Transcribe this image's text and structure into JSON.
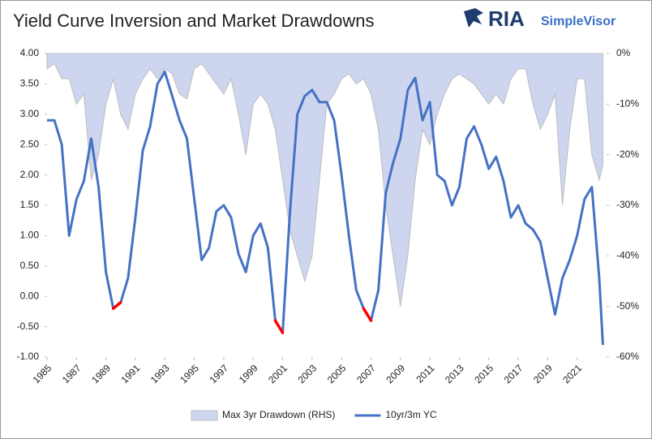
{
  "header": {
    "brand": "RIA",
    "product": "SimpleVisor"
  },
  "chart_data": {
    "type": "line",
    "title": "Yield Curve Inversion and Market Drawdowns",
    "x": [
      1985,
      1985.5,
      1986,
      1986.5,
      1987,
      1987.5,
      1988,
      1988.5,
      1989,
      1989.5,
      1990,
      1990.5,
      1991,
      1991.5,
      1992,
      1992.5,
      1993,
      1993.5,
      1994,
      1994.5,
      1995,
      1995.5,
      1996,
      1996.5,
      1997,
      1997.5,
      1998,
      1998.5,
      1999,
      1999.5,
      2000,
      2000.5,
      2001,
      2001.5,
      2002,
      2002.5,
      2003,
      2003.5,
      2004,
      2004.5,
      2005,
      2005.5,
      2006,
      2006.5,
      2007,
      2007.5,
      2008,
      2008.5,
      2009,
      2009.5,
      2010,
      2010.5,
      2011,
      2011.5,
      2012,
      2012.5,
      2013,
      2013.5,
      2014,
      2014.5,
      2015,
      2015.5,
      2016,
      2016.5,
      2017,
      2017.5,
      2018,
      2018.5,
      2019,
      2019.5,
      2020,
      2020.5,
      2021,
      2021.5,
      2022,
      2022.5,
      2022.75
    ],
    "xlim": [
      1985,
      2023
    ],
    "xticks": [
      1985,
      1987,
      1989,
      1991,
      1993,
      1995,
      1997,
      1999,
      2001,
      2003,
      2005,
      2007,
      2009,
      2011,
      2013,
      2015,
      2017,
      2019,
      2021
    ],
    "ylim": [
      -1,
      4
    ],
    "yticks": [
      {
        "value": -1,
        "label": "-1.00"
      },
      {
        "value": -0.5,
        "label": "-0.50"
      },
      {
        "value": 0,
        "label": "0.00"
      },
      {
        "value": 0.5,
        "label": "0.50"
      },
      {
        "value": 1,
        "label": "1.00"
      },
      {
        "value": 1.5,
        "label": "1.50"
      },
      {
        "value": 2,
        "label": "2.00"
      },
      {
        "value": 2.5,
        "label": "2.50"
      },
      {
        "value": 3,
        "label": "3.00"
      },
      {
        "value": 3.5,
        "label": "3.50"
      },
      {
        "value": 4,
        "label": "4.00"
      }
    ],
    "y2lim": [
      -60,
      0
    ],
    "y2ticks": [
      {
        "value": 0,
        "label": "0%"
      },
      {
        "value": -10,
        "label": "-10%"
      },
      {
        "value": -20,
        "label": "-20%"
      },
      {
        "value": -30,
        "label": "-30%"
      },
      {
        "value": -40,
        "label": "-40%"
      },
      {
        "value": -50,
        "label": "-50%"
      },
      {
        "value": -60,
        "label": "-60%"
      }
    ],
    "series": [
      {
        "name": "Max 3yr Drawdown (RHS)",
        "type": "area",
        "axis": "y2",
        "color": "#cdd6ee",
        "stroke": "#bdbdbd",
        "values": [
          -3,
          -2,
          -5,
          -5,
          -10,
          -8,
          -25,
          -20,
          -10,
          -5,
          -12,
          -15,
          -8,
          -5,
          -3,
          -5,
          -3,
          -4,
          -8,
          -9,
          -3,
          -2,
          -4,
          -6,
          -8,
          -5,
          -12,
          -20,
          -10,
          -8,
          -10,
          -15,
          -25,
          -35,
          -40,
          -45,
          -40,
          -25,
          -10,
          -8,
          -5,
          -4,
          -6,
          -5,
          -8,
          -15,
          -30,
          -40,
          -50,
          -40,
          -25,
          -15,
          -18,
          -12,
          -8,
          -5,
          -4,
          -5,
          -6,
          -8,
          -10,
          -8,
          -10,
          -5,
          -3,
          -3,
          -10,
          -15,
          -12,
          -8,
          -30,
          -15,
          -5,
          -5,
          -20,
          -25,
          -22
        ]
      },
      {
        "name": "10yr/3m YC",
        "type": "line",
        "color": "#4472c4",
        "negative_color": "#ff0000",
        "values": [
          2.9,
          2.9,
          2.5,
          1.0,
          1.6,
          1.9,
          2.6,
          1.8,
          0.4,
          -0.2,
          -0.1,
          0.3,
          1.3,
          2.4,
          2.8,
          3.5,
          3.7,
          3.3,
          2.9,
          2.6,
          1.6,
          0.6,
          0.8,
          1.4,
          1.5,
          1.3,
          0.7,
          0.4,
          1.0,
          1.2,
          0.8,
          -0.4,
          -0.6,
          1.4,
          3.0,
          3.3,
          3.4,
          3.2,
          3.2,
          2.9,
          2.0,
          1.0,
          0.1,
          -0.2,
          -0.4,
          0.1,
          1.7,
          2.2,
          2.6,
          3.4,
          3.6,
          2.9,
          3.2,
          2.0,
          1.9,
          1.5,
          1.8,
          2.6,
          2.8,
          2.5,
          2.1,
          2.3,
          1.9,
          1.3,
          1.5,
          1.2,
          1.1,
          0.9,
          0.3,
          -0.3,
          0.3,
          0.6,
          1.0,
          1.6,
          1.8,
          0.3,
          -0.8
        ]
      }
    ]
  }
}
